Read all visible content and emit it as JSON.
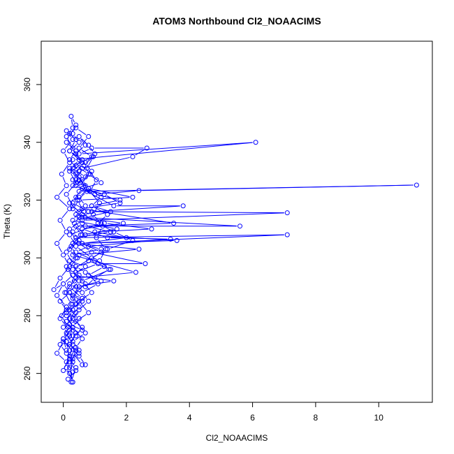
{
  "chart_data": {
    "type": "line",
    "title": "ATOM3 Northbound Cl2_NOAACIMS",
    "xlabel": "Cl2_NOAACIMS",
    "ylabel": "Theta (K)",
    "xlim": [
      -0.7,
      11.7
    ],
    "ylim": [
      250,
      375
    ],
    "xticks": [
      0,
      2,
      4,
      6,
      8,
      10
    ],
    "yticks": [
      260,
      280,
      300,
      320,
      340,
      360
    ],
    "grid": false,
    "legend": "none",
    "marker": "open-circle",
    "colors": {
      "series": "#0000ff",
      "axes": "#000000",
      "background": "#ffffff"
    },
    "series": [
      {
        "points": [
          [
            0.3,
            257
          ],
          [
            0.1,
            262
          ],
          [
            0.2,
            268
          ],
          [
            0.0,
            272
          ],
          [
            0.3,
            276
          ],
          [
            0.1,
            280
          ],
          [
            0.4,
            284
          ],
          [
            0.2,
            288
          ],
          [
            0.5,
            292
          ],
          [
            0.3,
            296
          ],
          [
            0.9,
            300
          ],
          [
            0.4,
            304
          ],
          [
            0.2,
            308
          ],
          [
            1.2,
            312
          ],
          [
            0.6,
            315
          ],
          [
            0.3,
            318
          ],
          [
            0.1,
            322
          ],
          [
            0.4,
            326
          ],
          [
            0.2,
            330
          ],
          [
            0.5,
            334
          ],
          [
            0.3,
            338
          ],
          [
            0.1,
            342
          ],
          [
            0.3,
            345
          ],
          [
            0.25,
            349
          ],
          [
            0.4,
            346
          ],
          [
            0.3,
            343
          ],
          [
            0.5,
            340
          ],
          [
            0.2,
            337
          ],
          [
            0.6,
            333
          ],
          [
            0.4,
            329
          ],
          [
            0.7,
            325
          ],
          [
            1.0,
            322
          ],
          [
            2.4,
            323.3
          ],
          [
            11.2,
            325.2
          ],
          [
            0.5,
            323
          ],
          [
            0.3,
            319
          ],
          [
            0.8,
            316
          ],
          [
            7.1,
            315.6
          ],
          [
            0.6,
            313
          ],
          [
            0.2,
            310
          ],
          [
            0.4,
            306
          ],
          [
            0.1,
            302
          ],
          [
            0.3,
            298
          ],
          [
            0.5,
            294
          ],
          [
            0.2,
            290
          ],
          [
            0.6,
            286
          ],
          [
            0.3,
            282
          ],
          [
            0.1,
            278
          ],
          [
            0.4,
            274
          ],
          [
            0.2,
            270
          ],
          [
            0.5,
            266
          ],
          [
            0.7,
            263
          ],
          [
            0.6,
            263
          ],
          [
            0.3,
            267
          ],
          [
            0.1,
            271
          ],
          [
            0.3,
            275
          ],
          [
            0.2,
            279
          ],
          [
            0.5,
            283
          ],
          [
            0.3,
            287
          ],
          [
            0.7,
            291
          ],
          [
            0.4,
            295
          ],
          [
            1.1,
            298
          ],
          [
            2.6,
            298
          ],
          [
            0.9,
            302
          ],
          [
            0.5,
            305
          ],
          [
            3.6,
            306
          ],
          [
            0.7,
            308
          ],
          [
            0.4,
            311
          ],
          [
            5.6,
            311
          ],
          [
            0.6,
            314
          ],
          [
            0.3,
            317
          ],
          [
            0.5,
            320
          ],
          [
            2.2,
            321
          ],
          [
            0.8,
            324
          ],
          [
            0.4,
            327
          ],
          [
            0.6,
            331
          ],
          [
            2.2,
            335
          ],
          [
            2.65,
            338
          ],
          [
            0.9,
            338
          ],
          [
            0.5,
            336
          ],
          [
            6.1,
            340
          ],
          [
            0.3,
            334
          ],
          [
            0.2,
            331
          ],
          [
            0.5,
            328
          ],
          [
            0.3,
            325
          ],
          [
            1.3,
            322
          ],
          [
            1.8,
            319
          ],
          [
            0.6,
            317
          ],
          [
            3.5,
            312
          ],
          [
            0.7,
            311
          ],
          [
            1.5,
            309
          ],
          [
            0.4,
            307
          ],
          [
            7.1,
            308
          ],
          [
            0.5,
            305
          ],
          [
            1.2,
            303
          ],
          [
            0.3,
            301
          ],
          [
            2.3,
            295
          ],
          [
            0.4,
            293
          ],
          [
            0.2,
            291
          ],
          [
            0.5,
            289
          ],
          [
            0.3,
            286
          ],
          [
            0.1,
            283
          ],
          [
            0.4,
            281
          ],
          [
            0.2,
            277
          ],
          [
            0.1,
            274
          ],
          [
            0.3,
            270
          ],
          [
            0.2,
            266
          ],
          [
            0.0,
            261
          ],
          [
            0.3,
            260.5
          ],
          [
            0.1,
            264
          ],
          [
            -0.2,
            267
          ],
          [
            0.0,
            271
          ],
          [
            0.2,
            275
          ],
          [
            -0.1,
            279
          ],
          [
            0.1,
            283
          ],
          [
            -0.2,
            287
          ],
          [
            0.0,
            291
          ],
          [
            -0.3,
            289
          ],
          [
            -0.1,
            293
          ],
          [
            0.2,
            297
          ],
          [
            0.0,
            301
          ],
          [
            -0.2,
            305
          ],
          [
            0.1,
            309
          ],
          [
            -0.1,
            313
          ],
          [
            0.2,
            317
          ],
          [
            -0.2,
            321
          ],
          [
            0.1,
            325
          ],
          [
            -0.05,
            329
          ],
          [
            0.2,
            333
          ],
          [
            0.0,
            337
          ],
          [
            0.3,
            341
          ],
          [
            0.1,
            344
          ],
          [
            0.4,
            341
          ],
          [
            0.2,
            337
          ],
          [
            0.6,
            334
          ],
          [
            0.3,
            331
          ],
          [
            0.7,
            328
          ],
          [
            0.4,
            325
          ],
          [
            1.6,
            318
          ],
          [
            3.8,
            318
          ],
          [
            0.9,
            316
          ],
          [
            0.5,
            314
          ],
          [
            1.9,
            312
          ],
          [
            0.6,
            310
          ],
          [
            1.4,
            307
          ],
          [
            3.4,
            306.5
          ],
          [
            0.8,
            304
          ],
          [
            0.4,
            302
          ],
          [
            1.0,
            299
          ],
          [
            0.4,
            297
          ],
          [
            0.7,
            295
          ],
          [
            1.2,
            292
          ],
          [
            0.5,
            290
          ],
          [
            0.3,
            287
          ],
          [
            0.6,
            285
          ],
          [
            0.2,
            282
          ],
          [
            0.5,
            279
          ],
          [
            0.3,
            276
          ],
          [
            0.6,
            272
          ],
          [
            0.4,
            269
          ],
          [
            0.2,
            265
          ],
          [
            0.4,
            262
          ],
          [
            0.25,
            257
          ],
          [
            0.15,
            258
          ],
          [
            0.4,
            261
          ],
          [
            0.2,
            264
          ],
          [
            0.5,
            268
          ],
          [
            0.3,
            271
          ],
          [
            0.7,
            274
          ],
          [
            0.4,
            278
          ],
          [
            0.8,
            281
          ],
          [
            0.5,
            285
          ],
          [
            0.9,
            288
          ],
          [
            0.6,
            292
          ],
          [
            1.5,
            296
          ],
          [
            0.8,
            299
          ],
          [
            1.2,
            302
          ],
          [
            0.6,
            305
          ],
          [
            2.0,
            307
          ],
          [
            1.0,
            309
          ],
          [
            2.8,
            310
          ],
          [
            1.3,
            312
          ],
          [
            0.7,
            314
          ],
          [
            1.5,
            316
          ],
          [
            0.9,
            318
          ],
          [
            1.8,
            320
          ],
          [
            1.0,
            322
          ],
          [
            0.6,
            324
          ],
          [
            1.2,
            326
          ],
          [
            0.8,
            329
          ],
          [
            0.4,
            332
          ],
          [
            0.9,
            335
          ],
          [
            0.5,
            338
          ],
          [
            0.8,
            342
          ],
          [
            0.4,
            345
          ],
          [
            0.2,
            343
          ],
          [
            0.1,
            340
          ],
          [
            0.4,
            337
          ],
          [
            0.2,
            334
          ],
          [
            0.5,
            330
          ],
          [
            0.3,
            327
          ],
          [
            0.6,
            324
          ],
          [
            0.4,
            321
          ],
          [
            0.2,
            319
          ],
          [
            0.5,
            316
          ],
          [
            0.3,
            313
          ],
          [
            1.7,
            310
          ],
          [
            0.6,
            308
          ],
          [
            0.3,
            305
          ],
          [
            2.4,
            303
          ],
          [
            0.5,
            301
          ],
          [
            0.2,
            299
          ],
          [
            0.7,
            297
          ],
          [
            0.3,
            294
          ],
          [
            1.6,
            292
          ],
          [
            0.4,
            290
          ],
          [
            0.1,
            288
          ],
          [
            0.6,
            286
          ],
          [
            0.3,
            284
          ],
          [
            0.1,
            281
          ],
          [
            0.5,
            279
          ],
          [
            0.2,
            277
          ],
          [
            0.6,
            275
          ],
          [
            0.3,
            273
          ],
          [
            0.1,
            271
          ],
          [
            0.4,
            268
          ],
          [
            0.2,
            262
          ],
          [
            0.3,
            257
          ],
          [
            0.2,
            260
          ],
          [
            0.3,
            264
          ],
          [
            0.1,
            267
          ],
          [
            -0.1,
            270
          ],
          [
            0.2,
            273
          ],
          [
            0.0,
            276
          ],
          [
            0.3,
            279
          ],
          [
            0.1,
            282
          ],
          [
            -0.1,
            285
          ],
          [
            0.2,
            288
          ],
          [
            0.0,
            291
          ],
          [
            0.3,
            294
          ],
          [
            0.1,
            297
          ],
          [
            0.4,
            300
          ],
          [
            0.2,
            303
          ],
          [
            0.5,
            306
          ],
          [
            0.3,
            309
          ],
          [
            0.6,
            312
          ],
          [
            0.4,
            315
          ],
          [
            0.7,
            318
          ],
          [
            0.5,
            321
          ],
          [
            0.8,
            324
          ],
          [
            0.6,
            327
          ],
          [
            0.9,
            330
          ],
          [
            0.7,
            333
          ],
          [
            1.0,
            336
          ],
          [
            0.8,
            339
          ],
          [
            0.5,
            342
          ],
          [
            0.7,
            339
          ],
          [
            0.4,
            336
          ],
          [
            0.6,
            333
          ],
          [
            0.3,
            330
          ],
          [
            0.5,
            327
          ],
          [
            0.8,
            324
          ],
          [
            1.2,
            321
          ],
          [
            0.9,
            318
          ],
          [
            1.4,
            315
          ],
          [
            1.1,
            312
          ],
          [
            1.6,
            309
          ],
          [
            2.2,
            306
          ],
          [
            1.4,
            303
          ],
          [
            0.9,
            300
          ],
          [
            1.3,
            297
          ],
          [
            0.8,
            294
          ],
          [
            1.1,
            291
          ],
          [
            0.6,
            288
          ],
          [
            0.8,
            285
          ],
          [
            0.5,
            282
          ],
          [
            0.3,
            279
          ],
          [
            0.6,
            276
          ],
          [
            0.4,
            273
          ],
          [
            0.2,
            270
          ],
          [
            0.5,
            267
          ],
          [
            0.3,
            265
          ],
          [
            0.1,
            268
          ],
          [
            0.0,
            272
          ],
          [
            0.15,
            276
          ],
          [
            -0.05,
            280
          ],
          [
            0.25,
            284
          ],
          [
            0.05,
            288
          ],
          [
            0.35,
            292
          ],
          [
            0.15,
            296
          ],
          [
            0.45,
            300
          ],
          [
            0.25,
            304
          ],
          [
            0.55,
            308
          ],
          [
            0.35,
            312
          ],
          [
            0.65,
            316
          ],
          [
            0.45,
            320
          ],
          [
            0.75,
            323
          ],
          [
            0.55,
            326
          ],
          [
            0.85,
            329
          ],
          [
            0.65,
            332
          ],
          [
            0.95,
            335
          ],
          [
            0.75,
            331
          ],
          [
            1.05,
            327
          ],
          [
            0.85,
            323
          ],
          [
            1.15,
            319
          ],
          [
            0.95,
            315
          ],
          [
            1.25,
            311
          ],
          [
            1.05,
            307
          ],
          [
            1.35,
            303
          ],
          [
            1.15,
            299
          ],
          [
            1.45,
            296
          ],
          [
            1.0,
            293
          ],
          [
            0.7,
            290
          ]
        ]
      }
    ]
  }
}
